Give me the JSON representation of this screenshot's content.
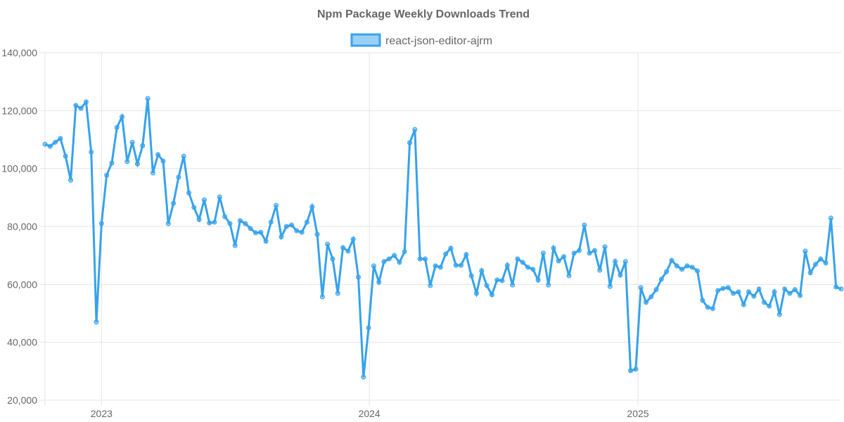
{
  "chart_data": {
    "type": "line",
    "title": "Npm Package Weekly Downloads Trend",
    "legend": {
      "placement": "top-center"
    },
    "series": [
      {
        "name": "react-json-editor-ajrm",
        "color": "#36a2eb",
        "start_date": "2022-10-16",
        "interval": "week",
        "values": [
          108400,
          107700,
          109100,
          110400,
          104300,
          96000,
          121800,
          120800,
          123000,
          105700,
          47000,
          81000,
          97700,
          101900,
          114200,
          117900,
          102400,
          109100,
          101600,
          107900,
          124200,
          98500,
          104800,
          102600,
          81000,
          88000,
          97000,
          104300,
          91600,
          86600,
          82400,
          89200,
          81200,
          81500,
          90200,
          83400,
          81000,
          73400,
          82000,
          81000,
          79300,
          77800,
          78000,
          74900,
          81500,
          87300,
          76400,
          80000,
          80500,
          78500,
          78000,
          81500,
          86800,
          77300,
          55700,
          73900,
          68800,
          56900,
          72700,
          71500,
          75600,
          62500,
          28000,
          45000,
          66400,
          60800,
          67900,
          68800,
          70000,
          67600,
          71300,
          108900,
          113500,
          68800,
          68800,
          59600,
          66400,
          65900,
          70500,
          72500,
          66600,
          66600,
          70300,
          63000,
          56900,
          64700,
          59600,
          56400,
          61500,
          61300,
          66600,
          59800,
          68800,
          67600,
          65900,
          65200,
          61500,
          70800,
          59800,
          72500,
          68100,
          69600,
          63000,
          70800,
          71700,
          80500,
          70800,
          71700,
          64900,
          73000,
          59300,
          67900,
          63200,
          67900,
          30200,
          30700,
          58900,
          53800,
          55700,
          58200,
          61800,
          64400,
          68300,
          66400,
          65200,
          66400,
          65900,
          64700,
          54500,
          52100,
          51600,
          57900,
          58600,
          58900,
          56900,
          57400,
          53000,
          57400,
          55900,
          58400,
          53800,
          52500,
          57400,
          49600,
          58400,
          56900,
          58200,
          56200,
          71500,
          64000,
          66900,
          68800,
          67400,
          82900,
          59100,
          58400
        ]
      }
    ],
    "yaxis": {
      "range": [
        20000,
        140000
      ],
      "ticks": [
        "20,000",
        "40,000",
        "60,000",
        "80,000",
        "100,000",
        "120,000",
        "140,000"
      ],
      "tick_values": [
        20000,
        40000,
        60000,
        80000,
        100000,
        120000,
        140000
      ]
    },
    "xaxis": {
      "ticks": [
        "2023",
        "2024",
        "2025"
      ],
      "tick_dates": [
        "2023-01-01",
        "2024-01-01",
        "2025-01-01"
      ]
    },
    "grid": true
  }
}
